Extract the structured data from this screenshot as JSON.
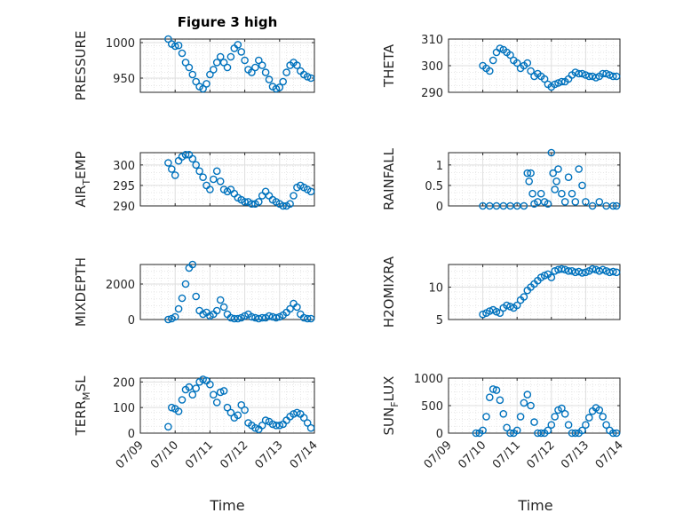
{
  "figure": {
    "title": "Figure 3 high",
    "xlabel": "Time",
    "x_tick_labels": [
      "07/09",
      "07/10",
      "07/11",
      "07/12",
      "07/13",
      "07/14"
    ]
  },
  "colors": {
    "marker": "#0072bd",
    "axis": "#262626",
    "grid": "#dfdfdf",
    "background": "#ffffff"
  },
  "chart_data": [
    {
      "type": "scatter",
      "title": "Figure 3 high",
      "ylabel": "PRESSURE",
      "ylim": [
        930,
        1005
      ],
      "yticks": [
        950,
        1000
      ],
      "xlim": [
        0,
        5
      ],
      "grid": true,
      "marker": "open-circle",
      "x": [
        0.8,
        0.9,
        1.0,
        1.1,
        1.2,
        1.3,
        1.4,
        1.5,
        1.6,
        1.7,
        1.8,
        1.9,
        2.0,
        2.1,
        2.2,
        2.3,
        2.4,
        2.5,
        2.6,
        2.7,
        2.8,
        2.9,
        3.0,
        3.1,
        3.2,
        3.3,
        3.4,
        3.5,
        3.6,
        3.7,
        3.8,
        3.9,
        4.0,
        4.1,
        4.2,
        4.3,
        4.4,
        4.5,
        4.6,
        4.7,
        4.8,
        4.9
      ],
      "y": [
        1005,
        998,
        995,
        996,
        985,
        972,
        965,
        955,
        945,
        938,
        935,
        942,
        955,
        962,
        972,
        980,
        972,
        965,
        980,
        992,
        997,
        987,
        975,
        962,
        958,
        965,
        975,
        968,
        958,
        948,
        938,
        935,
        937,
        945,
        958,
        968,
        972,
        968,
        960,
        955,
        952,
        950
      ]
    },
    {
      "type": "scatter",
      "ylabel": "THETA",
      "ylim": [
        290,
        310
      ],
      "yticks": [
        290,
        300,
        310
      ],
      "xlim": [
        0,
        5
      ],
      "grid": true,
      "marker": "open-circle",
      "x": [
        1.0,
        1.1,
        1.2,
        1.3,
        1.4,
        1.5,
        1.6,
        1.7,
        1.8,
        1.9,
        2.0,
        2.1,
        2.2,
        2.3,
        2.4,
        2.5,
        2.6,
        2.7,
        2.8,
        2.9,
        3.0,
        3.1,
        3.2,
        3.3,
        3.4,
        3.5,
        3.6,
        3.7,
        3.8,
        3.9,
        4.0,
        4.1,
        4.2,
        4.3,
        4.4,
        4.5,
        4.6,
        4.7,
        4.8,
        4.9
      ],
      "y": [
        300,
        299,
        298,
        302,
        305,
        306.5,
        306,
        305,
        304,
        302,
        301,
        299,
        300,
        301,
        298,
        296,
        297,
        296,
        295,
        293,
        292,
        293,
        293.5,
        294,
        294,
        295,
        296.5,
        297.5,
        297,
        297,
        296.5,
        296,
        296,
        295.5,
        296,
        297,
        297,
        296.5,
        296,
        296
      ]
    },
    {
      "type": "scatter",
      "ylabel": "AIR_TEMP",
      "ylim": [
        290,
        303
      ],
      "yticks": [
        290,
        295,
        300
      ],
      "xlim": [
        0,
        5
      ],
      "grid": true,
      "marker": "open-circle",
      "x": [
        0.8,
        0.9,
        1.0,
        1.1,
        1.2,
        1.3,
        1.4,
        1.5,
        1.6,
        1.7,
        1.8,
        1.9,
        2.0,
        2.1,
        2.2,
        2.3,
        2.4,
        2.5,
        2.6,
        2.7,
        2.8,
        2.9,
        3.0,
        3.1,
        3.2,
        3.3,
        3.4,
        3.5,
        3.6,
        3.7,
        3.8,
        3.9,
        4.0,
        4.1,
        4.2,
        4.3,
        4.4,
        4.5,
        4.6,
        4.7,
        4.8,
        4.9
      ],
      "y": [
        300.5,
        299,
        297.5,
        301,
        302,
        302.5,
        302.5,
        301.5,
        300,
        298.5,
        297,
        295,
        294,
        296.5,
        298.5,
        296,
        294,
        293.5,
        294,
        293,
        292,
        291.5,
        291,
        291,
        290.5,
        290.5,
        291,
        292.5,
        293.5,
        292.5,
        291.5,
        291,
        290.5,
        290,
        290,
        290.5,
        292.5,
        294.5,
        295,
        294.5,
        294,
        293.5
      ]
    },
    {
      "type": "scatter",
      "ylabel": "RAINFALL",
      "ylim": [
        0,
        1.3
      ],
      "yticks": [
        0,
        0.5,
        1
      ],
      "xlim": [
        0,
        5
      ],
      "grid": true,
      "marker": "open-circle",
      "x": [
        1.0,
        1.2,
        1.4,
        1.6,
        1.8,
        2.0,
        2.2,
        2.3,
        2.35,
        2.4,
        2.45,
        2.5,
        2.6,
        2.7,
        2.8,
        2.9,
        3.0,
        3.05,
        3.1,
        3.15,
        3.2,
        3.3,
        3.4,
        3.5,
        3.6,
        3.7,
        3.8,
        3.9,
        4.0,
        4.2,
        4.4,
        4.6,
        4.8,
        4.9
      ],
      "y": [
        0,
        0,
        0,
        0,
        0,
        0,
        0,
        0.8,
        0.6,
        0.8,
        0.3,
        0.05,
        0.1,
        0.3,
        0.1,
        0.05,
        1.3,
        0.8,
        0.4,
        0.6,
        0.9,
        0.3,
        0.1,
        0.7,
        0.3,
        0.1,
        0.9,
        0.5,
        0.1,
        0,
        0.1,
        0,
        0,
        0
      ]
    },
    {
      "type": "scatter",
      "ylabel": "MIXDEPTH",
      "ylim": [
        0,
        3100
      ],
      "yticks": [
        0,
        2000
      ],
      "xlim": [
        0,
        5
      ],
      "grid": true,
      "marker": "open-circle",
      "x": [
        0.8,
        0.9,
        1.0,
        1.1,
        1.2,
        1.3,
        1.4,
        1.5,
        1.6,
        1.7,
        1.8,
        1.9,
        2.0,
        2.1,
        2.2,
        2.3,
        2.4,
        2.5,
        2.6,
        2.7,
        2.8,
        2.9,
        3.0,
        3.1,
        3.2,
        3.3,
        3.4,
        3.5,
        3.6,
        3.7,
        3.8,
        3.9,
        4.0,
        4.1,
        4.2,
        4.3,
        4.4,
        4.5,
        4.6,
        4.7,
        4.8,
        4.9
      ],
      "y": [
        0,
        50,
        150,
        600,
        1200,
        2000,
        2900,
        3100,
        1300,
        500,
        300,
        400,
        200,
        300,
        500,
        1100,
        700,
        300,
        100,
        50,
        50,
        100,
        200,
        300,
        150,
        100,
        50,
        100,
        100,
        200,
        150,
        100,
        150,
        250,
        400,
        600,
        900,
        700,
        300,
        100,
        50,
        50
      ]
    },
    {
      "type": "scatter",
      "ylabel": "H2OMIXRA",
      "ylim": [
        5,
        13.5
      ],
      "yticks": [
        5,
        10
      ],
      "xlim": [
        0,
        5
      ],
      "grid": true,
      "marker": "open-circle",
      "x": [
        1.0,
        1.1,
        1.2,
        1.3,
        1.4,
        1.5,
        1.6,
        1.7,
        1.8,
        1.9,
        2.0,
        2.1,
        2.2,
        2.3,
        2.4,
        2.5,
        2.6,
        2.7,
        2.8,
        2.9,
        3.0,
        3.1,
        3.2,
        3.3,
        3.4,
        3.5,
        3.6,
        3.7,
        3.8,
        3.9,
        4.0,
        4.1,
        4.2,
        4.3,
        4.4,
        4.5,
        4.6,
        4.7,
        4.8,
        4.9
      ],
      "y": [
        5.8,
        6,
        6.3,
        6.5,
        6.2,
        6,
        6.8,
        7.2,
        7,
        6.8,
        7.2,
        8,
        8.5,
        9.5,
        10,
        10.5,
        11,
        11.5,
        11.8,
        12,
        11.5,
        12.5,
        12.7,
        12.8,
        12.7,
        12.5,
        12.5,
        12.3,
        12.4,
        12.2,
        12.3,
        12.5,
        12.8,
        12.7,
        12.5,
        12.7,
        12.5,
        12.3,
        12.4,
        12.3
      ]
    },
    {
      "type": "scatter",
      "ylabel": "TERR_MSL",
      "ylim": [
        0,
        215
      ],
      "yticks": [
        0,
        100,
        200
      ],
      "xlim": [
        0,
        5
      ],
      "grid": true,
      "marker": "open-circle",
      "x": [
        0.8,
        0.9,
        1.0,
        1.1,
        1.2,
        1.3,
        1.4,
        1.5,
        1.6,
        1.7,
        1.8,
        1.9,
        2.0,
        2.1,
        2.2,
        2.3,
        2.4,
        2.5,
        2.6,
        2.7,
        2.8,
        2.9,
        3.0,
        3.1,
        3.2,
        3.3,
        3.4,
        3.5,
        3.6,
        3.7,
        3.8,
        3.9,
        4.0,
        4.1,
        4.2,
        4.3,
        4.4,
        4.5,
        4.6,
        4.7,
        4.8,
        4.9
      ],
      "y": [
        25,
        100,
        95,
        85,
        130,
        170,
        180,
        150,
        175,
        200,
        210,
        205,
        190,
        150,
        120,
        160,
        165,
        100,
        80,
        60,
        70,
        110,
        90,
        40,
        30,
        20,
        15,
        30,
        50,
        45,
        35,
        30,
        30,
        35,
        50,
        65,
        75,
        80,
        75,
        60,
        40,
        20
      ]
    },
    {
      "type": "scatter",
      "ylabel": "SUN_FLUX",
      "ylim": [
        0,
        1000
      ],
      "yticks": [
        0,
        500,
        1000
      ],
      "xlim": [
        0,
        5
      ],
      "grid": true,
      "marker": "open-circle",
      "x": [
        0.8,
        0.9,
        1.0,
        1.1,
        1.2,
        1.3,
        1.4,
        1.5,
        1.6,
        1.7,
        1.8,
        1.9,
        2.0,
        2.1,
        2.2,
        2.3,
        2.4,
        2.5,
        2.6,
        2.7,
        2.8,
        2.9,
        3.0,
        3.1,
        3.2,
        3.3,
        3.4,
        3.5,
        3.6,
        3.7,
        3.8,
        3.9,
        4.0,
        4.1,
        4.2,
        4.3,
        4.4,
        4.5,
        4.6,
        4.7,
        4.8,
        4.9
      ],
      "y": [
        0,
        0,
        50,
        300,
        650,
        800,
        780,
        600,
        350,
        100,
        0,
        0,
        50,
        300,
        550,
        700,
        500,
        200,
        0,
        0,
        0,
        50,
        150,
        300,
        420,
        450,
        350,
        150,
        0,
        0,
        0,
        50,
        150,
        280,
        400,
        460,
        420,
        300,
        150,
        50,
        0,
        0
      ]
    }
  ]
}
